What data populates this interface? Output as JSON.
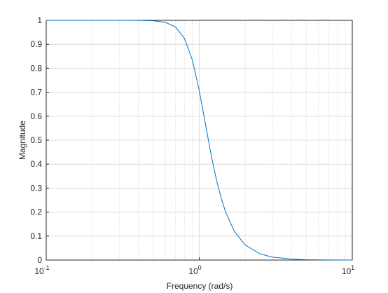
{
  "chart_data": {
    "type": "line",
    "x_label": "Frequency (rad/s)",
    "y_label": "Magnitude",
    "x": [
      0.1,
      0.2,
      0.3,
      0.4,
      0.5,
      0.6,
      0.7,
      0.8,
      0.9,
      1,
      1.1,
      1.2,
      1.3,
      1.4,
      1.5,
      1.7,
      2,
      2.5,
      3,
      4,
      5,
      7,
      10
    ],
    "series": [
      {
        "color": "#0072bd",
        "values": [
          1,
          1,
          1,
          0.9997,
          0.998,
          0.992,
          0.972,
          0.925,
          0.836,
          0.707,
          0.564,
          0.434,
          0.33,
          0.252,
          0.194,
          0.119,
          0.0624,
          0.0256,
          0.0123,
          0.0039,
          0.0016,
          0.0004,
          0.0001
        ]
      }
    ],
    "xscale": "log",
    "xlim": [
      0.1,
      10
    ],
    "ylim": [
      0,
      1
    ],
    "xticks": [
      {
        "value": 0.1,
        "label": "10",
        "exponent": "-1"
      },
      {
        "value": 1,
        "label": "10",
        "exponent": "0"
      },
      {
        "value": 10,
        "label": "10",
        "exponent": "1"
      }
    ],
    "xminor": [
      0.2,
      0.3,
      0.4,
      0.5,
      0.6,
      0.7,
      0.8,
      0.9,
      2,
      3,
      4,
      5,
      6,
      7,
      8,
      9
    ],
    "yticks": [
      0,
      0.1,
      0.2,
      0.3,
      0.4,
      0.5,
      0.6,
      0.7,
      0.8,
      0.9,
      1
    ],
    "grid": true
  }
}
